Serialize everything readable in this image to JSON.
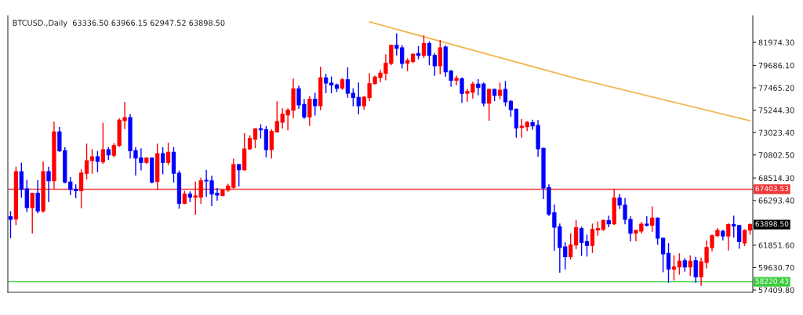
{
  "chart_data": {
    "type": "candlestick",
    "title": "BTCUSD.,Daily  63336.50 63966.15 62947.52 63898.50",
    "categories": [
      null,
      null,
      null,
      null,
      null,
      null,
      null,
      null,
      null,
      null,
      null,
      null,
      null,
      null,
      null,
      null,
      null,
      null,
      null,
      null,
      null,
      null,
      null,
      null,
      null,
      null,
      null,
      null,
      null,
      null,
      null,
      null,
      null,
      null,
      null,
      null,
      null,
      null,
      null,
      null,
      null,
      null,
      null,
      null,
      null,
      null,
      null,
      null,
      null,
      null,
      null,
      null,
      null,
      null,
      null,
      null,
      null,
      null,
      null,
      null,
      null,
      null,
      null,
      null,
      null,
      null,
      null,
      null,
      null,
      null,
      null,
      null,
      null,
      null,
      null,
      null,
      null,
      null,
      null,
      null,
      null,
      null,
      null,
      null,
      null,
      null,
      null,
      null,
      null,
      null,
      null,
      null,
      null,
      null,
      null,
      null,
      null,
      null,
      null,
      null,
      null,
      null,
      null,
      null,
      null,
      null,
      null,
      null,
      null,
      null,
      null,
      null,
      null,
      null,
      null,
      null,
      null,
      null,
      null,
      null,
      null,
      null,
      null,
      null,
      null,
      null,
      null,
      null,
      null,
      null,
      null,
      null,
      null,
      null,
      null,
      null,
      null
    ],
    "ohlc": [
      [
        64670,
        65180,
        62590,
        64410
      ],
      [
        64460,
        69590,
        63890,
        69150
      ],
      [
        69150,
        69980,
        66610,
        67390
      ],
      [
        67440,
        68290,
        65180,
        65570
      ],
      [
        65570,
        67000,
        63060,
        67000
      ],
      [
        67000,
        68240,
        65060,
        65240
      ],
      [
        65240,
        70110,
        65130,
        69150
      ],
      [
        69150,
        69590,
        66170,
        68240
      ],
      [
        68240,
        74050,
        67470,
        73090
      ],
      [
        73090,
        73530,
        71140,
        71220
      ],
      [
        71220,
        71530,
        68030,
        68110
      ],
      [
        68110,
        68550,
        66870,
        67390
      ],
      [
        67390,
        67830,
        66560,
        67260
      ],
      [
        67260,
        69330,
        65570,
        69020
      ],
      [
        68990,
        71870,
        68420,
        70240
      ],
      [
        70240,
        71330,
        68990,
        70630
      ],
      [
        70630,
        71140,
        69150,
        70160
      ],
      [
        70110,
        73940,
        69980,
        71330
      ],
      [
        71330,
        71530,
        70370,
        70810
      ],
      [
        70760,
        71920,
        70630,
        71740
      ],
      [
        71740,
        74380,
        71660,
        74250
      ],
      [
        74200,
        76020,
        73430,
        74510
      ],
      [
        74510,
        74820,
        70500,
        71220
      ],
      [
        71220,
        71530,
        68810,
        70500
      ],
      [
        70500,
        71400,
        69330,
        70060
      ],
      [
        70060,
        70500,
        69980,
        70500
      ],
      [
        70500,
        70500,
        68030,
        68110
      ],
      [
        68160,
        71870,
        67390,
        70940
      ],
      [
        70940,
        71530,
        68940,
        70060
      ],
      [
        70060,
        71970,
        69850,
        71070
      ],
      [
        71070,
        71530,
        68110,
        68990
      ],
      [
        68990,
        69200,
        65520,
        66010
      ],
      [
        66010,
        67200,
        65960,
        66920
      ],
      [
        66920,
        67130,
        66170,
        66610
      ],
      [
        66610,
        68110,
        64930,
        66740
      ],
      [
        66610,
        68500,
        66010,
        68240
      ],
      [
        68290,
        69280,
        66690,
        68220
      ],
      [
        68240,
        68680,
        65780,
        66920
      ],
      [
        67000,
        67470,
        66300,
        66820
      ],
      [
        66790,
        67310,
        66740,
        67310
      ],
      [
        67310,
        67900,
        67200,
        67720
      ],
      [
        67590,
        70370,
        67520,
        69850
      ],
      [
        69850,
        69850,
        67720,
        69330
      ],
      [
        69330,
        72910,
        69280,
        71400
      ],
      [
        71400,
        72700,
        71350,
        72440
      ],
      [
        72360,
        73400,
        71530,
        73400
      ],
      [
        73400,
        73790,
        72490,
        73300
      ],
      [
        73300,
        73610,
        70630,
        71330
      ],
      [
        71330,
        73300,
        70500,
        73140
      ],
      [
        73090,
        76070,
        73090,
        74120
      ],
      [
        74050,
        75370,
        73480,
        74850
      ],
      [
        74770,
        75370,
        73300,
        75240
      ],
      [
        75240,
        78320,
        74510,
        77360
      ],
      [
        77360,
        77620,
        75420,
        75760
      ],
      [
        75810,
        76280,
        74440,
        74570
      ],
      [
        74570,
        76590,
        73740,
        76330
      ],
      [
        76330,
        76900,
        74770,
        75680
      ],
      [
        75680,
        79490,
        75290,
        78450
      ],
      [
        78450,
        78790,
        76980,
        77930
      ],
      [
        77930,
        78530,
        76980,
        77750
      ],
      [
        77750,
        77830,
        77100,
        77420
      ],
      [
        77440,
        78400,
        77310,
        78270
      ],
      [
        78270,
        79440,
        76530,
        76920
      ],
      [
        76920,
        77360,
        75680,
        76510
      ],
      [
        76510,
        77930,
        74900,
        75680
      ],
      [
        75680,
        76590,
        75340,
        76530
      ],
      [
        76510,
        78870,
        76200,
        77880
      ],
      [
        77880,
        78610,
        77830,
        78530
      ],
      [
        78480,
        79180,
        78060,
        78920
      ],
      [
        78920,
        80730,
        78270,
        79900
      ],
      [
        79880,
        81690,
        79750,
        81690
      ],
      [
        81690,
        82810,
        80730,
        81380
      ],
      [
        81430,
        81640,
        79440,
        79880
      ],
      [
        79900,
        80340,
        79180,
        80160
      ],
      [
        80080,
        80860,
        79950,
        80780
      ],
      [
        80860,
        81560,
        80340,
        80680
      ],
      [
        80680,
        82600,
        80470,
        81850
      ],
      [
        81850,
        82030,
        79750,
        80680
      ],
      [
        80680,
        80860,
        78710,
        79640
      ],
      [
        79640,
        82160,
        78870,
        81430
      ],
      [
        81510,
        81640,
        78610,
        79050
      ],
      [
        79130,
        79180,
        77620,
        78220
      ],
      [
        78220,
        78610,
        77750,
        78400
      ],
      [
        78350,
        78450,
        76020,
        76900
      ],
      [
        76920,
        77290,
        76150,
        77100
      ],
      [
        77030,
        78010,
        76460,
        77830
      ],
      [
        77830,
        78270,
        76790,
        77490
      ],
      [
        77830,
        77930,
        75680,
        75940
      ],
      [
        75940,
        77310,
        74250,
        77310
      ],
      [
        77310,
        77310,
        76200,
        76720
      ],
      [
        76720,
        77930,
        76380,
        77230
      ],
      [
        77310,
        78090,
        75680,
        76070
      ],
      [
        76120,
        76200,
        74640,
        75290
      ],
      [
        75340,
        75340,
        72570,
        73480
      ],
      [
        73530,
        74310,
        72570,
        73660
      ],
      [
        73610,
        74120,
        73220,
        74050
      ],
      [
        74000,
        74250,
        73350,
        73680
      ],
      [
        73740,
        74200,
        70680,
        71400
      ],
      [
        71460,
        71460,
        66480,
        67520
      ],
      [
        67570,
        67830,
        64800,
        64930
      ],
      [
        65060,
        65830,
        61350,
        63630
      ],
      [
        63680,
        63940,
        59170,
        61610
      ],
      [
        61690,
        62080,
        59480,
        60730
      ],
      [
        60730,
        62980,
        60470,
        61870
      ],
      [
        61870,
        64280,
        61500,
        63580
      ],
      [
        63500,
        63630,
        60830,
        62130
      ],
      [
        62200,
        62850,
        60780,
        61820
      ],
      [
        61820,
        63940,
        61120,
        63420
      ],
      [
        63370,
        64150,
        62850,
        63500
      ],
      [
        63420,
        64360,
        63320,
        64280
      ],
      [
        64280,
        64720,
        63680,
        63970
      ],
      [
        63970,
        67390,
        63890,
        66530
      ],
      [
        66530,
        66870,
        65500,
        65830
      ],
      [
        65830,
        66480,
        63970,
        64410
      ],
      [
        64410,
        64670,
        62280,
        63030
      ],
      [
        63060,
        63320,
        62280,
        63320
      ],
      [
        63240,
        64100,
        63060,
        63940
      ],
      [
        63940,
        64670,
        63760,
        63840
      ],
      [
        63840,
        65630,
        63240,
        64540
      ],
      [
        64540,
        64540,
        61950,
        62540
      ],
      [
        62540,
        62540,
        59220,
        60990
      ],
      [
        61040,
        62000,
        58190,
        59480
      ],
      [
        59480,
        60780,
        58400,
        59690
      ],
      [
        59690,
        60990,
        58970,
        60260
      ],
      [
        60310,
        60520,
        59280,
        59690
      ],
      [
        59690,
        60780,
        58840,
        60260
      ],
      [
        60310,
        60650,
        58190,
        58710
      ],
      [
        58710,
        60570,
        57880,
        60210
      ],
      [
        60130,
        62280,
        59610,
        61630
      ],
      [
        61610,
        62850,
        61300,
        62800
      ],
      [
        62800,
        63500,
        62720,
        63320
      ],
      [
        63240,
        63320,
        62390,
        62770
      ],
      [
        62770,
        63970,
        61380,
        63890
      ],
      [
        63890,
        64720,
        62650,
        63760
      ],
      [
        63810,
        63810,
        61560,
        62200
      ],
      [
        62080,
        63370,
        61820,
        63320
      ],
      [
        63336.5,
        63966.15,
        62947.52,
        63898.5
      ]
    ],
    "colors": [
      "#0000ff",
      "#ff0000",
      "#0000ff",
      "#0000ff",
      "#ff0000",
      "#0000ff",
      "#ff0000",
      "#0000ff",
      "#ff0000",
      "#0000ff",
      "#0000ff",
      "#0000ff",
      "#0000ff",
      "#ff0000",
      "#ff0000",
      "#ff0000",
      "#0000ff",
      "#ff0000",
      "#0000ff",
      "#ff0000",
      "#ff0000",
      "#ff0000",
      "#0000ff",
      "#0000ff",
      "#0000ff",
      "#ff0000",
      "#0000ff",
      "#ff0000",
      "#0000ff",
      "#ff0000",
      "#0000ff",
      "#0000ff",
      "#ff0000",
      "#0000ff",
      "#ff0000",
      "#ff0000",
      "#0000ff",
      "#0000ff",
      "#0000ff",
      "#ff0000",
      "#ff0000",
      "#ff0000",
      "#0000ff",
      "#ff0000",
      "#ff0000",
      "#ff0000",
      "#0000ff",
      "#0000ff",
      "#ff0000",
      "#ff0000",
      "#ff0000",
      "#ff0000",
      "#ff0000",
      "#0000ff",
      "#0000ff",
      "#ff0000",
      "#0000ff",
      "#ff0000",
      "#0000ff",
      "#0000ff",
      "#0000ff",
      "#ff0000",
      "#0000ff",
      "#0000ff",
      "#0000ff",
      "#ff0000",
      "#ff0000",
      "#ff0000",
      "#ff0000",
      "#ff0000",
      "#ff0000",
      "#0000ff",
      "#0000ff",
      "#ff0000",
      "#ff0000",
      "#0000ff",
      "#ff0000",
      "#0000ff",
      "#0000ff",
      "#ff0000",
      "#0000ff",
      "#0000ff",
      "#ff0000",
      "#0000ff",
      "#ff0000",
      "#ff0000",
      "#0000ff",
      "#0000ff",
      "#ff0000",
      "#0000ff",
      "#ff0000",
      "#0000ff",
      "#0000ff",
      "#0000ff",
      "#ff0000",
      "#ff0000",
      "#0000ff",
      "#0000ff",
      "#0000ff",
      "#0000ff",
      "#0000ff",
      "#0000ff",
      "#0000ff",
      "#ff0000",
      "#ff0000",
      "#0000ff",
      "#0000ff",
      "#ff0000",
      "#ff0000",
      "#ff0000",
      "#0000ff",
      "#ff0000",
      "#0000ff",
      "#0000ff",
      "#0000ff",
      "#ff0000",
      "#ff0000",
      "#0000ff",
      "#ff0000",
      "#0000ff",
      "#0000ff",
      "#0000ff",
      "#ff0000",
      "#ff0000",
      "#0000ff",
      "#ff0000",
      "#0000ff",
      "#ff0000",
      "#ff0000",
      "#ff0000",
      "#ff0000",
      "#0000ff",
      "#ff0000",
      "#0000ff",
      "#0000ff",
      "#ff0000",
      "#ff0000"
    ],
    "series": [
      {
        "type": "line",
        "color": "#f2b650",
        "values": [
          null,
          null,
          null,
          null,
          null,
          null,
          null,
          null,
          null,
          null,
          null,
          null,
          null,
          null,
          null,
          null,
          null,
          null,
          null,
          null,
          null,
          null,
          null,
          null,
          null,
          null,
          null,
          null,
          null,
          null,
          null,
          null,
          null,
          null,
          null,
          null,
          null,
          null,
          null,
          null,
          null,
          null,
          null,
          null,
          null,
          null,
          null,
          null,
          null,
          null,
          null,
          null,
          null,
          null,
          null,
          null,
          null,
          null,
          null,
          null,
          null,
          null,
          null,
          null,
          null,
          null,
          84000,
          null,
          null,
          null,
          null,
          null,
          null,
          null,
          null,
          null,
          null,
          null,
          null,
          null,
          null,
          null,
          null,
          null,
          null,
          null,
          null,
          null,
          null,
          null,
          null,
          null,
          null,
          null,
          null,
          null,
          null,
          null,
          null,
          null,
          null,
          null,
          null,
          null,
          78400,
          null,
          null,
          null,
          null,
          null,
          null,
          null,
          null,
          null,
          null,
          null,
          null,
          null,
          null,
          null,
          null,
          null,
          null,
          null,
          null,
          null,
          null,
          null,
          null,
          null,
          null,
          null,
          null,
          null,
          null,
          null,
          74200
        ]
      }
    ],
    "ylim": [
      57180,
      84620
    ],
    "yticks": [
      {
        "value": 81974.3,
        "label": "81974.30"
      },
      {
        "value": 79686.1,
        "label": "79686.10"
      },
      {
        "value": 77465.2,
        "label": "77465.20"
      },
      {
        "value": 75244.3,
        "label": "75244.30"
      },
      {
        "value": 73023.4,
        "label": "73023.40"
      },
      {
        "value": 70802.5,
        "label": "70802.50"
      },
      {
        "value": 68514.3,
        "label": "68514.30"
      },
      {
        "value": 66293.4,
        "label": "66293.40"
      },
      {
        "value": 61851.6,
        "label": "61851.60"
      },
      {
        "value": 59630.7,
        "label": "59630.70"
      },
      {
        "value": 57409.8,
        "label": "57409.80"
      }
    ],
    "ref_lines": [
      {
        "axis": "y",
        "value": 67403.53,
        "label": "67403.53",
        "color": "#ee3a3a"
      },
      {
        "axis": "y",
        "value": 58220.43,
        "label": "58220.43",
        "color": "#3ccc3c"
      }
    ],
    "annotations": [
      "63898.50"
    ],
    "tick_labels": "y",
    "grid": false,
    "legend": false
  }
}
